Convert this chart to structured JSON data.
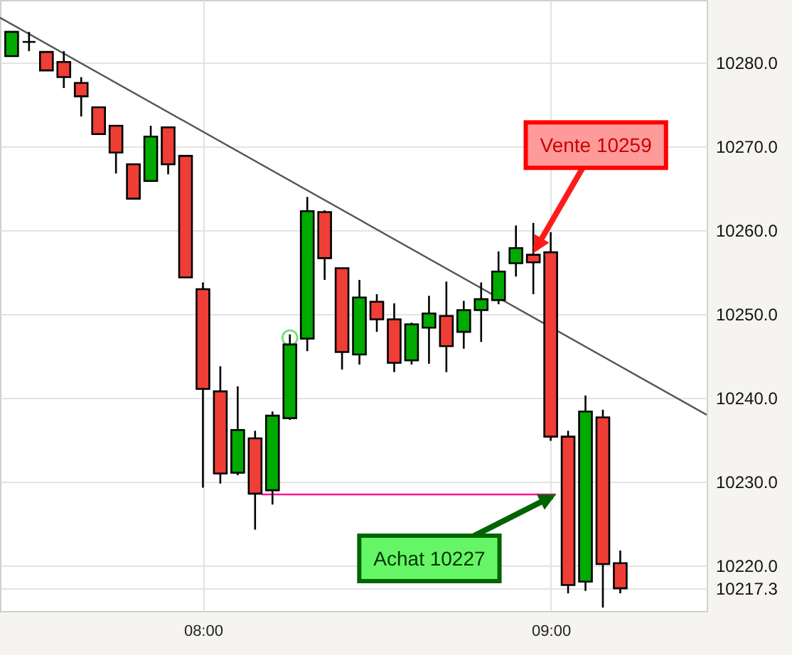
{
  "chart_data": {
    "type": "candlestick",
    "x": [
      7.45,
      7.5,
      7.55,
      7.6,
      7.65,
      7.7,
      7.75,
      7.8,
      7.85,
      7.9,
      7.95,
      8,
      8.05,
      8.1,
      8.15,
      8.2,
      8.25,
      8.3,
      8.35,
      8.4,
      8.45,
      8.5,
      8.55,
      8.6,
      8.65,
      8.7,
      8.75,
      8.8,
      8.85,
      8.9,
      8.95,
      9,
      9.05,
      9.1,
      9.15,
      9.2
    ],
    "ohlc": [
      [
        10280.8,
        10283.7,
        10280.8,
        10283.7
      ],
      [
        10282.5,
        10283.7,
        10281.4,
        10282.5
      ],
      [
        10281.3,
        10281.3,
        10279.1,
        10279.1
      ],
      [
        10280.1,
        10281.4,
        10277.0,
        10278.3
      ],
      [
        10277.6,
        10278.3,
        10273.6,
        10276.0
      ],
      [
        10274.7,
        10274.7,
        10271.5,
        10271.5
      ],
      [
        10272.5,
        10272.5,
        10266.8,
        10269.3
      ],
      [
        10267.9,
        10267.9,
        10263.8,
        10263.8
      ],
      [
        10265.9,
        10272.5,
        10265.9,
        10271.2
      ],
      [
        10272.3,
        10272.3,
        10266.7,
        10267.9
      ],
      [
        10268.9,
        10268.9,
        10254.4,
        10254.4
      ],
      [
        10253.0,
        10253.8,
        10229.3,
        10241.1
      ],
      [
        10240.8,
        10243.8,
        10229.8,
        10231.0
      ],
      [
        10231.1,
        10241.4,
        10230.8,
        10236.2
      ],
      [
        10235.2,
        10236.1,
        10224.3,
        10228.6
      ],
      [
        10229.0,
        10238.4,
        10227.3,
        10237.9
      ],
      [
        10237.6,
        10247.6,
        10237.4,
        10246.4
      ],
      [
        10247.1,
        10264.0,
        10245.6,
        10262.3
      ],
      [
        10262.2,
        10262.4,
        10254.1,
        10256.7
      ],
      [
        10255.5,
        10255.5,
        10243.4,
        10245.5
      ],
      [
        10245.2,
        10254.1,
        10244.0,
        10252.0
      ],
      [
        10251.5,
        10252.4,
        10247.9,
        10249.4
      ],
      [
        10249.4,
        10251.3,
        10243.1,
        10244.2
      ],
      [
        10244.5,
        10249.0,
        10244.0,
        10248.8
      ],
      [
        10248.4,
        10252.2,
        10244.1,
        10250.1
      ],
      [
        10249.8,
        10253.9,
        10243.1,
        10246.2
      ],
      [
        10247.9,
        10251.6,
        10245.9,
        10250.5
      ],
      [
        10250.5,
        10253.8,
        10246.7,
        10251.8
      ],
      [
        10251.7,
        10257.5,
        10251.2,
        10255.1
      ],
      [
        10256.1,
        10260.6,
        10254.5,
        10257.9
      ],
      [
        10257.1,
        10260.9,
        10252.4,
        10256.2
      ],
      [
        10257.4,
        10259.8,
        10234.9,
        10235.4
      ],
      [
        10235.4,
        10236.1,
        10216.7,
        10217.7
      ],
      [
        10218.1,
        10240.3,
        10217.0,
        10238.4
      ],
      [
        10237.7,
        10238.6,
        10215.0,
        10220.2
      ],
      [
        10220.3,
        10221.8,
        10216.7,
        10217.3
      ]
    ],
    "colors": [
      "#00aa00",
      "#000000",
      "#ee3e36",
      "#ee3e36",
      "#ee3e36",
      "#ee3e36",
      "#ee3e36",
      "#ee3e36",
      "#00aa00",
      "#ee3e36",
      "#ee3e36",
      "#ee3e36",
      "#ee3e36",
      "#00aa00",
      "#ee3e36",
      "#00aa00",
      "#00aa00",
      "#00aa00",
      "#ee3e36",
      "#ee3e36",
      "#00aa00",
      "#ee3e36",
      "#ee3e36",
      "#00aa00",
      "#00aa00",
      "#ee3e36",
      "#00aa00",
      "#00aa00",
      "#00aa00",
      "#00aa00",
      "#ee3e36",
      "#ee3e36",
      "#ee3e36",
      "#00aa00",
      "#ee3e36",
      "#ee3e36"
    ],
    "series": [
      {
        "type": "line",
        "color": "#555555",
        "x": [
          7.4165,
          9.4485
        ],
        "values": [
          10285.4,
          10238.0
        ]
      },
      {
        "type": "line",
        "color": "#ff1493",
        "x": [
          8.169,
          9.015
        ],
        "values": [
          10228.5,
          10228.5
        ]
      },
      {
        "type": "scatter",
        "color": "#33cc33",
        "marker": "circle",
        "x": [
          8.25
        ],
        "values": [
          10247.2
        ]
      }
    ],
    "xlim": [
      7.4165,
      9.4485
    ],
    "xticks": [
      {
        "value": 8,
        "label": "08:00"
      },
      {
        "value": 9,
        "label": "09:00"
      }
    ],
    "ylim": [
      10214.6,
      10287.5
    ],
    "yticks": [
      {
        "value": 10217.3,
        "label": "10217.3"
      },
      {
        "value": 10220,
        "label": "10220.0"
      },
      {
        "value": 10230,
        "label": "10230.0"
      },
      {
        "value": 10240,
        "label": "10240.0"
      },
      {
        "value": 10250,
        "label": "10250.0"
      },
      {
        "value": 10260,
        "label": "10260.0"
      },
      {
        "value": 10270,
        "label": "10270.0"
      },
      {
        "value": 10280,
        "label": "10280.0"
      }
    ],
    "grid": true,
    "annotations": [
      {
        "text": "Vente 10259",
        "x": 8.95,
        "y": 10257.3
      },
      {
        "text": "Achat 10227",
        "x": 9.015,
        "y": 10228.5
      }
    ]
  }
}
